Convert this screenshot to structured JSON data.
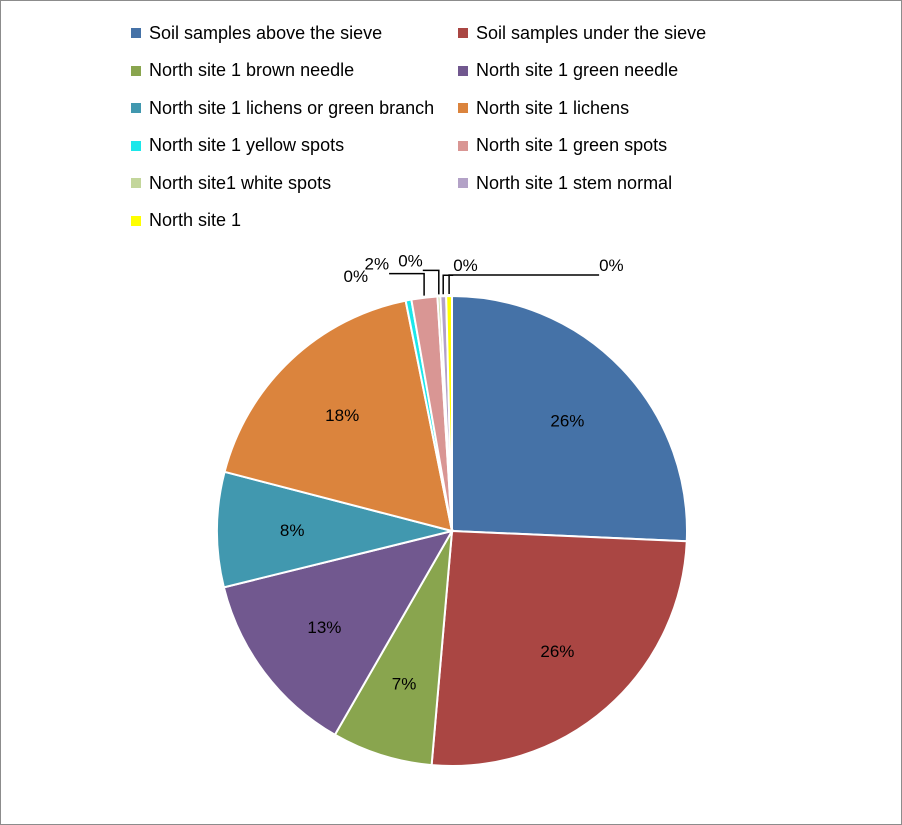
{
  "chart_data": {
    "type": "pie",
    "series": [
      {
        "name": "Soil samples above the sieve",
        "value": 26,
        "label": "26%",
        "color": "#4572A7"
      },
      {
        "name": "Soil samples under the sieve",
        "value": 26,
        "label": "26%",
        "color": "#AA4643"
      },
      {
        "name": "North site 1 brown needle",
        "value": 7,
        "label": "7%",
        "color": "#89A54E"
      },
      {
        "name": "North site 1 green needle",
        "value": 13,
        "label": "13%",
        "color": "#71588F"
      },
      {
        "name": "North site 1 lichens or green branch",
        "value": 8,
        "label": "8%",
        "color": "#4198AF"
      },
      {
        "name": "North site 1 lichens",
        "value": 18,
        "label": "18%",
        "color": "#DB843D"
      },
      {
        "name": "North site 1 yellow spots",
        "value": 0.4,
        "label": "0%",
        "color": "#1BE7EA"
      },
      {
        "name": "North site 1 green spots",
        "value": 1.8,
        "label": "2%",
        "color": "#D99694"
      },
      {
        "name": "North site1 white spots",
        "value": 0.2,
        "label": "0%",
        "color": "#C3D69B"
      },
      {
        "name": "North site 1 stem normal",
        "value": 0.4,
        "label": "0%",
        "color": "#B3A2C7"
      },
      {
        "name": "North site 1",
        "value": 0.4,
        "label": "0%",
        "color": "#FFFF00"
      }
    ],
    "legend_position": "top",
    "start_angle_deg": 0,
    "direction": "clockwise"
  }
}
